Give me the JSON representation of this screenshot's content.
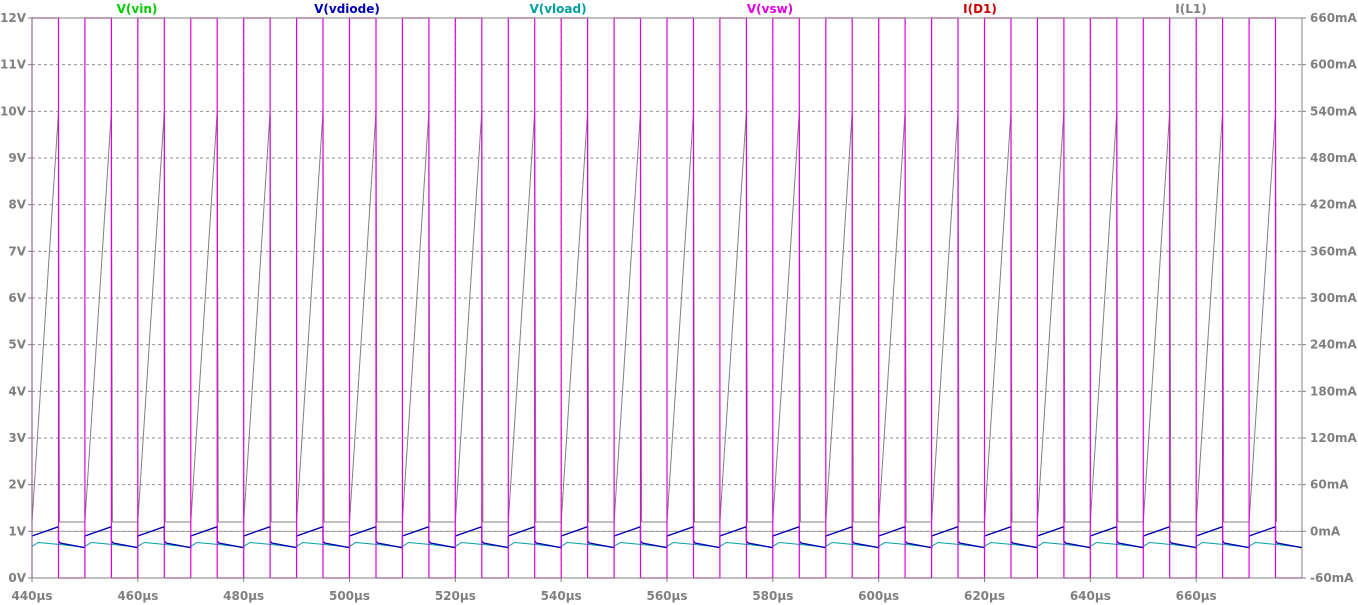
{
  "chart_data": {
    "type": "line",
    "title": "",
    "x_axis": {
      "unit": "µs",
      "range": [
        440,
        680
      ],
      "ticks": [
        "440µs",
        "460µs",
        "480µs",
        "500µs",
        "520µs",
        "540µs",
        "560µs",
        "580µs",
        "600µs",
        "620µs",
        "640µs",
        "660µs"
      ]
    },
    "y_left": {
      "range": [
        0,
        12
      ],
      "ticks": [
        "0V",
        "1V",
        "2V",
        "3V",
        "4V",
        "5V",
        "6V",
        "7V",
        "8V",
        "9V",
        "10V",
        "11V",
        "12V"
      ]
    },
    "y_right": {
      "range": [
        -60,
        660
      ],
      "unit": "mA",
      "ticks": [
        "-60mA",
        "0mA",
        "60mA",
        "120mA",
        "180mA",
        "240mA",
        "300mA",
        "360mA",
        "420mA",
        "480mA",
        "540mA",
        "600mA",
        "660mA"
      ]
    },
    "grid": true,
    "legend_position": "top",
    "switching": {
      "period_us": 10,
      "first_rise_us": 440,
      "on_time_us": 5,
      "cycles": 24
    },
    "series": [
      {
        "name": "V(vin)",
        "color": "#00cc00",
        "axis": "left",
        "shape": "constant",
        "value": 12
      },
      {
        "name": "V(vdiode)",
        "color": "#0000b4",
        "axis": "left",
        "shape": "ramp",
        "start": 0.9,
        "end": 1.1,
        "off_level": 0.7
      },
      {
        "name": "V(vload)",
        "color": "#00a0a0",
        "axis": "left",
        "shape": "ripple",
        "min": 0.66,
        "max": 0.76
      },
      {
        "name": "V(vsw)",
        "color": "#e000e0",
        "axis": "left",
        "shape": "square",
        "high": 12,
        "low": 0
      },
      {
        "name": "I(D1)",
        "color": "#cc0000",
        "axis": "right",
        "shape": "zero",
        "value": 0
      },
      {
        "name": "I(L1)",
        "color": "#808080",
        "axis": "right",
        "shape": "sawtooth",
        "min": 12,
        "max": 540
      }
    ]
  }
}
